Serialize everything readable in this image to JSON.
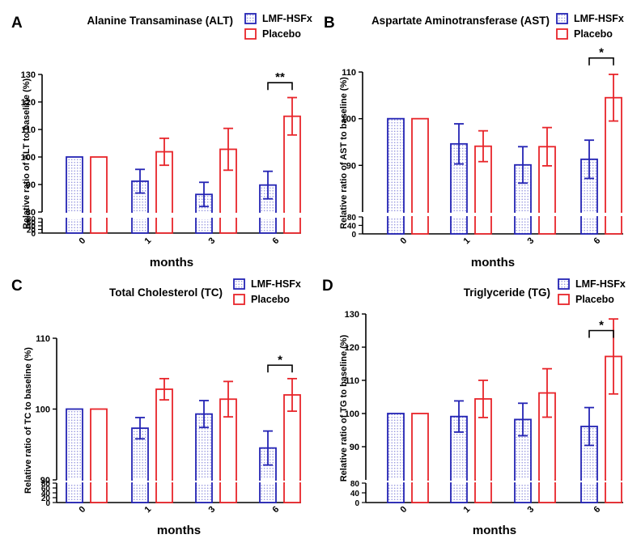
{
  "colors": {
    "lmf": "#2424b4",
    "placebo": "#e8252a",
    "axis": "#000000"
  },
  "chart_data": [
    {
      "panel": "A",
      "type": "bar",
      "title": "Alanine Transaminase (ALT)",
      "xlabel": "months",
      "ylabel": "Relative ratio of ALT to baseline (%)",
      "categories": [
        "0",
        "1",
        "3",
        "6"
      ],
      "series": [
        {
          "name": "LMF-HSFx",
          "values": [
            100,
            91.2,
            86.4,
            89.8
          ],
          "errors": [
            0,
            4.3,
            4.4,
            5.0
          ]
        },
        {
          "name": "Placebo",
          "values": [
            100,
            101.9,
            102.8,
            114.8
          ],
          "errors": [
            0,
            4.9,
            7.6,
            6.8
          ]
        }
      ],
      "ylim": [
        80,
        130
      ],
      "y_ticks": [
        80,
        90,
        100,
        110,
        120,
        130
      ],
      "lower_ticks": [
        0,
        20,
        40,
        60,
        80
      ],
      "significance": [
        {
          "category": "6",
          "label": "**",
          "y": 127
        }
      ],
      "legend": [
        "LMF-HSFx",
        "Placebo"
      ]
    },
    {
      "panel": "B",
      "type": "bar",
      "title": "Aspartate Aminotransferase (AST)",
      "xlabel": "months",
      "ylabel": "Relative ratio of AST to baseline (%)",
      "categories": [
        "0",
        "1",
        "3",
        "6"
      ],
      "series": [
        {
          "name": "LMF-HSFx",
          "values": [
            100,
            94.6,
            90.1,
            91.3
          ],
          "errors": [
            0,
            4.3,
            3.9,
            4.1
          ]
        },
        {
          "name": "Placebo",
          "values": [
            100,
            94.1,
            94.0,
            104.5
          ],
          "errors": [
            0,
            3.3,
            4.1,
            5.0
          ]
        }
      ],
      "ylim": [
        80,
        110
      ],
      "y_ticks": [
        90,
        100,
        110
      ],
      "lower_ticks": [
        0,
        40,
        80
      ],
      "significance": [
        {
          "category": "6",
          "label": "*",
          "y": 113
        }
      ],
      "legend": [
        "LMF-HSFx",
        "Placebo"
      ]
    },
    {
      "panel": "C",
      "type": "bar",
      "title": "Total Cholesterol (TC)",
      "xlabel": "months",
      "ylabel": "Relative ratio of TC to baseline (%)",
      "categories": [
        "0",
        "1",
        "3",
        "6"
      ],
      "series": [
        {
          "name": "LMF-HSFx",
          "values": [
            100,
            97.3,
            99.3,
            94.5
          ],
          "errors": [
            0,
            1.5,
            1.9,
            2.4
          ]
        },
        {
          "name": "Placebo",
          "values": [
            100,
            102.8,
            101.4,
            102.0
          ],
          "errors": [
            0,
            1.5,
            2.5,
            2.3
          ]
        }
      ],
      "ylim": [
        90,
        110
      ],
      "y_ticks": [
        90,
        100,
        110
      ],
      "lower_ticks": [
        0,
        20,
        40,
        60,
        80
      ],
      "significance": [
        {
          "category": "6",
          "label": "*",
          "y": 106.2
        }
      ],
      "legend": [
        "LMF-HSFx",
        "Placebo"
      ]
    },
    {
      "panel": "D",
      "type": "bar",
      "title": "Triglyceride (TG)",
      "xlabel": "months",
      "ylabel": "Relative ratio of TG to baseline (%)",
      "categories": [
        "0",
        "1",
        "3",
        "6"
      ],
      "series": [
        {
          "name": "LMF-HSFx",
          "values": [
            100,
            99.1,
            98.2,
            96.1
          ],
          "errors": [
            0,
            4.7,
            4.9,
            5.7
          ]
        },
        {
          "name": "Placebo",
          "values": [
            100,
            104.4,
            106.2,
            117.2
          ],
          "errors": [
            0,
            5.6,
            7.3,
            11.3
          ]
        }
      ],
      "ylim": [
        80,
        130
      ],
      "y_ticks": [
        90,
        100,
        110,
        120,
        130
      ],
      "lower_ticks": [
        0,
        40,
        80
      ],
      "significance": [
        {
          "category": "6",
          "label": "*",
          "y": 125
        }
      ],
      "legend": [
        "LMF-HSFx",
        "Placebo"
      ]
    }
  ]
}
